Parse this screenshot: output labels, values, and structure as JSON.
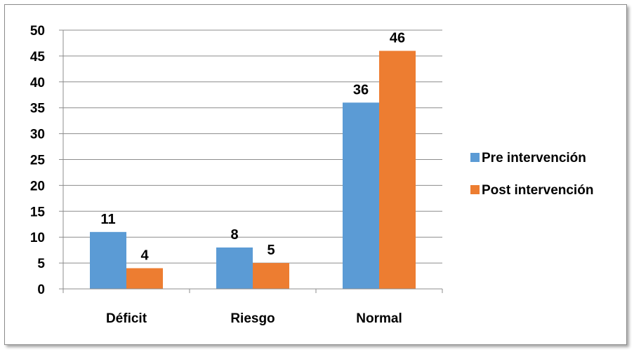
{
  "chart_data": {
    "type": "bar",
    "categories": [
      "Déficit",
      "Riesgo",
      "Normal"
    ],
    "series": [
      {
        "name": "Pre intervención",
        "values": [
          11,
          8,
          36
        ],
        "color": "#5B9BD5"
      },
      {
        "name": "Post intervención",
        "values": [
          4,
          5,
          46
        ],
        "color": "#ED7D31"
      }
    ],
    "ylim": [
      0,
      50
    ],
    "yticks": [
      0,
      5,
      10,
      15,
      20,
      25,
      30,
      35,
      40,
      45,
      50
    ],
    "grid": true,
    "data_labels": true,
    "legend_position": "right"
  }
}
